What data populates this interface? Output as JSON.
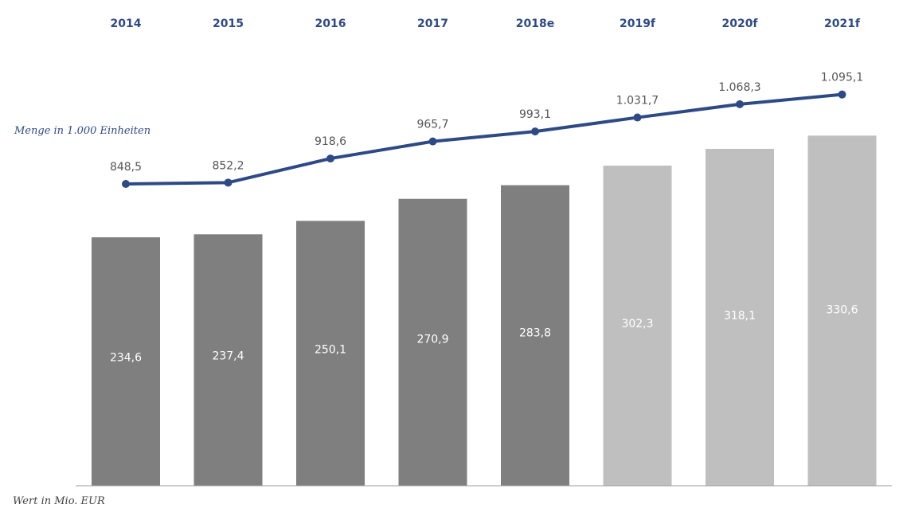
{
  "chart_data": {
    "type": "bar",
    "categories": [
      "2014",
      "2015",
      "2016",
      "2017",
      "2018e",
      "2019f",
      "2020f",
      "2021f"
    ],
    "series": [
      {
        "name": "Wert in Mio. EUR",
        "type": "bar",
        "values": [
          234.6,
          237.4,
          250.1,
          270.9,
          283.8,
          302.3,
          318.1,
          330.6
        ],
        "labels": [
          "234,6",
          "237,4",
          "250,1",
          "270,9",
          "283,8",
          "302,3",
          "318,1",
          "330,6"
        ]
      },
      {
        "name": "Menge in 1.000 Einheiten",
        "type": "line",
        "values": [
          848.5,
          852.2,
          918.6,
          965.7,
          993.1,
          1031.7,
          1068.3,
          1095.1
        ],
        "labels": [
          "848,5",
          "852,2",
          "918,6",
          "965,7",
          "993,1",
          "1.031,7",
          "1.068,3",
          "1.095,1"
        ]
      }
    ],
    "forecast_from_index": 5,
    "colors": {
      "actual_bar": "#7f7f7f",
      "forecast_bar": "#bfbfbf",
      "line": "#2e4a86",
      "year_text": "#2e4a86",
      "legend_text": "#2e4a86",
      "value_text": "#555555",
      "axis_note_text": "#444444"
    },
    "annotations": {
      "line_legend": "Menge in 1.000 Einheiten",
      "bar_axis_note": "Wert in Mio. EUR"
    }
  }
}
